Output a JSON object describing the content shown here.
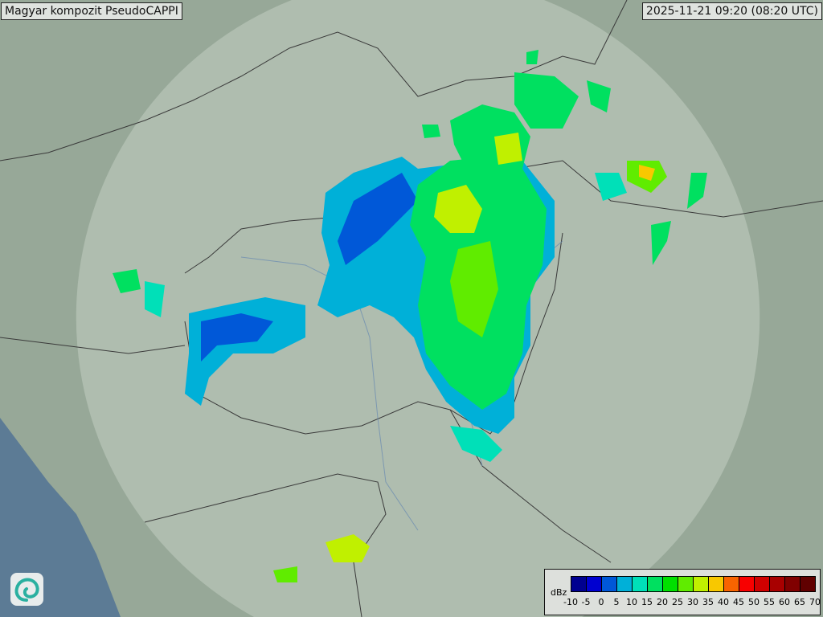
{
  "header": {
    "title": "Magyar kompozit  PseudoCAPPI",
    "timestamp": "2025-11-21 09:20 (08:20 UTC)"
  },
  "legend": {
    "unit": "dBz",
    "ticks": [
      "-10",
      "-5",
      "0",
      "5",
      "10",
      "15",
      "20",
      "25",
      "30",
      "35",
      "40",
      "45",
      "50",
      "55",
      "60",
      "65",
      "70"
    ],
    "colors": [
      "#000090",
      "#0000d0",
      "#0058d8",
      "#00b0d8",
      "#00e0b8",
      "#00e060",
      "#00e000",
      "#60ec00",
      "#c0f000",
      "#f8c800",
      "#f86400",
      "#f80000",
      "#d00000",
      "#a80000",
      "#800000",
      "#600000"
    ]
  },
  "logo": {
    "icon": "swirl-logo-icon"
  }
}
